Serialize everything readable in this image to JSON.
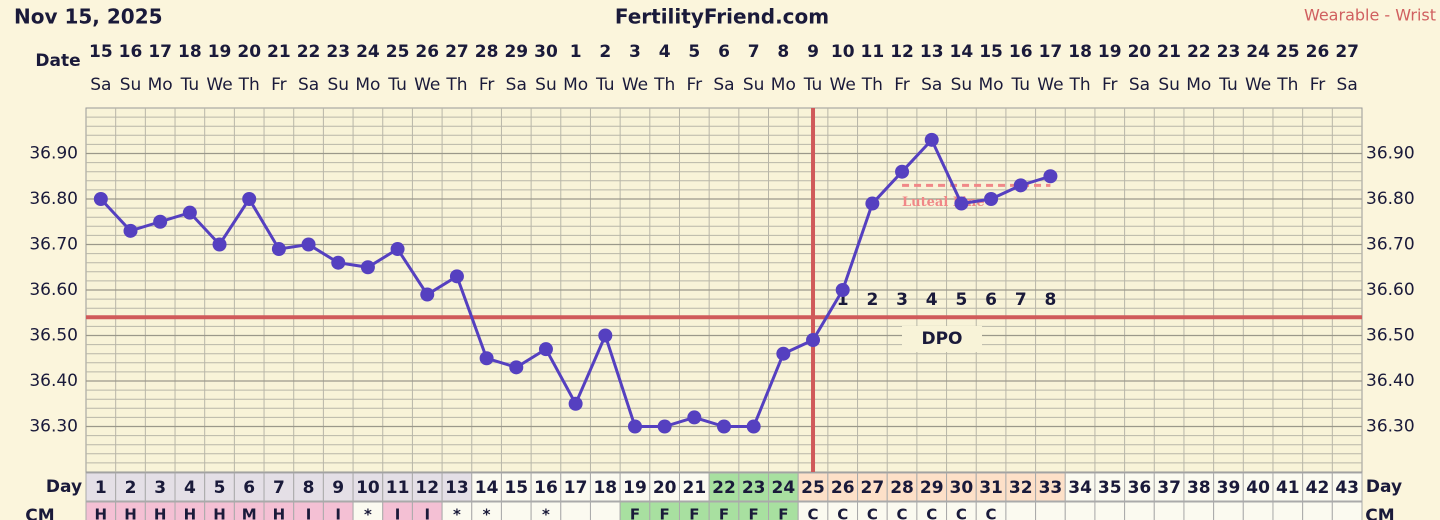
{
  "header": {
    "date": "Nov 15, 2025",
    "site": "FertilityFriend.com",
    "source": "Wearable - Wrist"
  },
  "chart_data": {
    "type": "line",
    "x_label": "Date",
    "day_label": "Day",
    "cm_label": "CM",
    "dpo_label": "DPO",
    "luteal_label": "Luteal Line",
    "dates": [
      15,
      16,
      17,
      18,
      19,
      20,
      21,
      22,
      23,
      24,
      25,
      26,
      27,
      28,
      29,
      30,
      1,
      2,
      3,
      4,
      5,
      6,
      7,
      8,
      9,
      10,
      11,
      12,
      13,
      14,
      15,
      16,
      17,
      18,
      19,
      20,
      21,
      22,
      23,
      24,
      25,
      26,
      27
    ],
    "weekdays": [
      "Sa",
      "Su",
      "Mo",
      "Tu",
      "We",
      "Th",
      "Fr",
      "Sa",
      "Su",
      "Mo",
      "Tu",
      "We",
      "Th",
      "Fr",
      "Sa",
      "Su",
      "Mo",
      "Tu",
      "We",
      "Th",
      "Fr",
      "Sa",
      "Su",
      "Mo",
      "Tu",
      "We",
      "Th",
      "Fr",
      "Sa",
      "Su",
      "Mo",
      "Tu",
      "We",
      "Th",
      "Fr",
      "Sa",
      "Su",
      "Mo",
      "Tu",
      "We",
      "Th",
      "Fr",
      "Sa"
    ],
    "x": [
      1,
      2,
      3,
      4,
      5,
      6,
      7,
      8,
      9,
      10,
      11,
      12,
      13,
      14,
      15,
      16,
      17,
      18,
      19,
      20,
      21,
      22,
      23,
      24,
      25,
      26,
      27,
      28,
      29,
      30,
      31,
      32,
      33,
      34,
      35,
      36,
      37,
      38,
      39,
      40,
      41,
      42,
      43
    ],
    "series": [
      {
        "name": "Temperature",
        "color": "#5540c0",
        "values": [
          36.8,
          36.73,
          36.75,
          36.77,
          36.7,
          36.8,
          36.69,
          36.7,
          36.66,
          36.65,
          36.69,
          36.59,
          36.63,
          36.45,
          36.43,
          36.47,
          36.35,
          36.5,
          36.3,
          36.3,
          36.32,
          36.3,
          36.3,
          36.46,
          36.49,
          36.6,
          36.79,
          36.86,
          36.93,
          36.79,
          36.8,
          36.83,
          36.85,
          null,
          null,
          null,
          null,
          null,
          null,
          null,
          null,
          null,
          null
        ]
      }
    ],
    "cm": [
      "H",
      "H",
      "H",
      "H",
      "H",
      "M",
      "H",
      "I",
      "I",
      "*",
      "I",
      "I",
      "*",
      "*",
      null,
      "*",
      null,
      null,
      "F",
      "F",
      "F",
      "F",
      "F",
      "F",
      "C",
      "C",
      "C",
      "C",
      "C",
      "C",
      "C",
      null,
      null,
      null,
      null,
      null,
      null,
      null,
      null,
      null,
      null,
      null,
      null
    ],
    "dpo": [
      null,
      null,
      null,
      null,
      null,
      null,
      null,
      null,
      null,
      null,
      null,
      null,
      null,
      null,
      null,
      null,
      null,
      null,
      null,
      null,
      null,
      null,
      null,
      null,
      null,
      1,
      2,
      3,
      4,
      5,
      6,
      7,
      8,
      null,
      null,
      null,
      null,
      null,
      null,
      null,
      null,
      null,
      null
    ],
    "day_colors": [
      "#e4dfe6",
      "#e4dfe6",
      "#e4dfe6",
      "#e4dfe6",
      "#e4dfe6",
      "#e4dfe6",
      "#e4dfe6",
      "#e4dfe6",
      "#e4dfe6",
      "#e4dfe6",
      "#e4dfe6",
      "#e4dfe6",
      "#e4dfe6",
      "#fbfaf0",
      "#fbfaf0",
      "#fbfaf0",
      "#fbfaf0",
      "#fbfaf0",
      "#fbfaf0",
      "#fbfaf0",
      "#fbfaf0",
      "#a8e0a0",
      "#a8e0a0",
      "#a8e0a0",
      "#fde0c8",
      "#fde0c8",
      "#fde0c8",
      "#fde0c8",
      "#fde0c8",
      "#fde0c8",
      "#fde0c8",
      "#fde0c8",
      "#fde0c8",
      "#fbfaf0",
      "#fbfaf0",
      "#fbfaf0",
      "#fbfaf0",
      "#fbfaf0",
      "#fbfaf0",
      "#fbfaf0",
      "#fbfaf0",
      "#fbfaf0",
      "#fbfaf0"
    ],
    "cm_colors": {
      "H": "#f4c0d4",
      "M": "#f4c0d4",
      "I": "#f4c0d4",
      "F": "#a8e0a0",
      "C": "#fbfaf0",
      "*": "#fbfaf0"
    },
    "ylim": [
      36.2,
      37.0
    ],
    "yticks": [
      {
        "value": 36.3,
        "label": "36.30"
      },
      {
        "value": 36.4,
        "label": "36.40"
      },
      {
        "value": 36.5,
        "label": "36.50"
      },
      {
        "value": 36.6,
        "label": "36.60"
      },
      {
        "value": 36.7,
        "label": "36.70"
      },
      {
        "value": 36.8,
        "label": "36.80"
      },
      {
        "value": 36.9,
        "label": "36.90"
      }
    ],
    "coverline": 36.54,
    "coverline_color": "#d05a5a",
    "ovulation_day": 25,
    "luteal_line": 36.83,
    "luteal_range": [
      28,
      33
    ],
    "luteal_color": "#f08888",
    "grid": true
  }
}
